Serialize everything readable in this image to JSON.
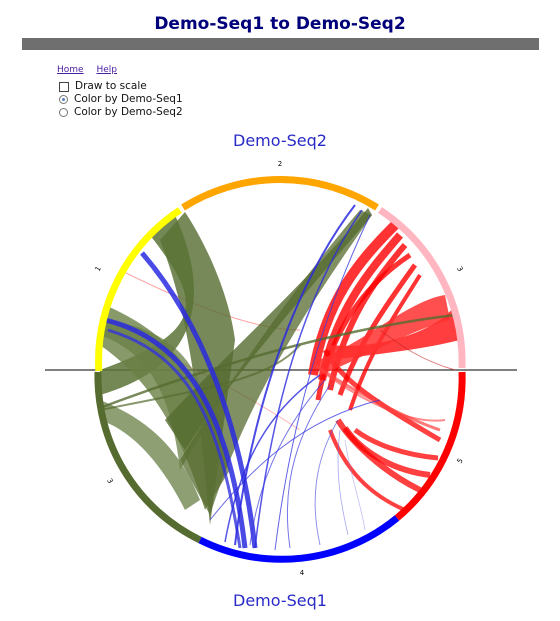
{
  "page": {
    "title": "Demo-Seq1 to Demo-Seq2"
  },
  "nav": {
    "home": "Home",
    "help": "Help"
  },
  "options": {
    "draw_to_scale": "Draw to scale",
    "color_by_seq1": "Color by Demo-Seq1",
    "color_by_seq2": "Color by Demo-Seq2",
    "selected": "color_by_seq1",
    "draw_to_scale_checked": false
  },
  "diagram": {
    "top_label": "Demo-Seq2",
    "bottom_label": "Demo-Seq1",
    "segments": [
      {
        "label": "1",
        "color": "#ffff00"
      },
      {
        "label": "2",
        "color": "#ffa500"
      },
      {
        "label": "3",
        "color": "#ffb6c1"
      },
      {
        "label": "5",
        "color": "#ff0000"
      },
      {
        "label": "4",
        "color": "#0000ff"
      },
      {
        "label": "3",
        "color": "#556b2f"
      }
    ]
  }
}
